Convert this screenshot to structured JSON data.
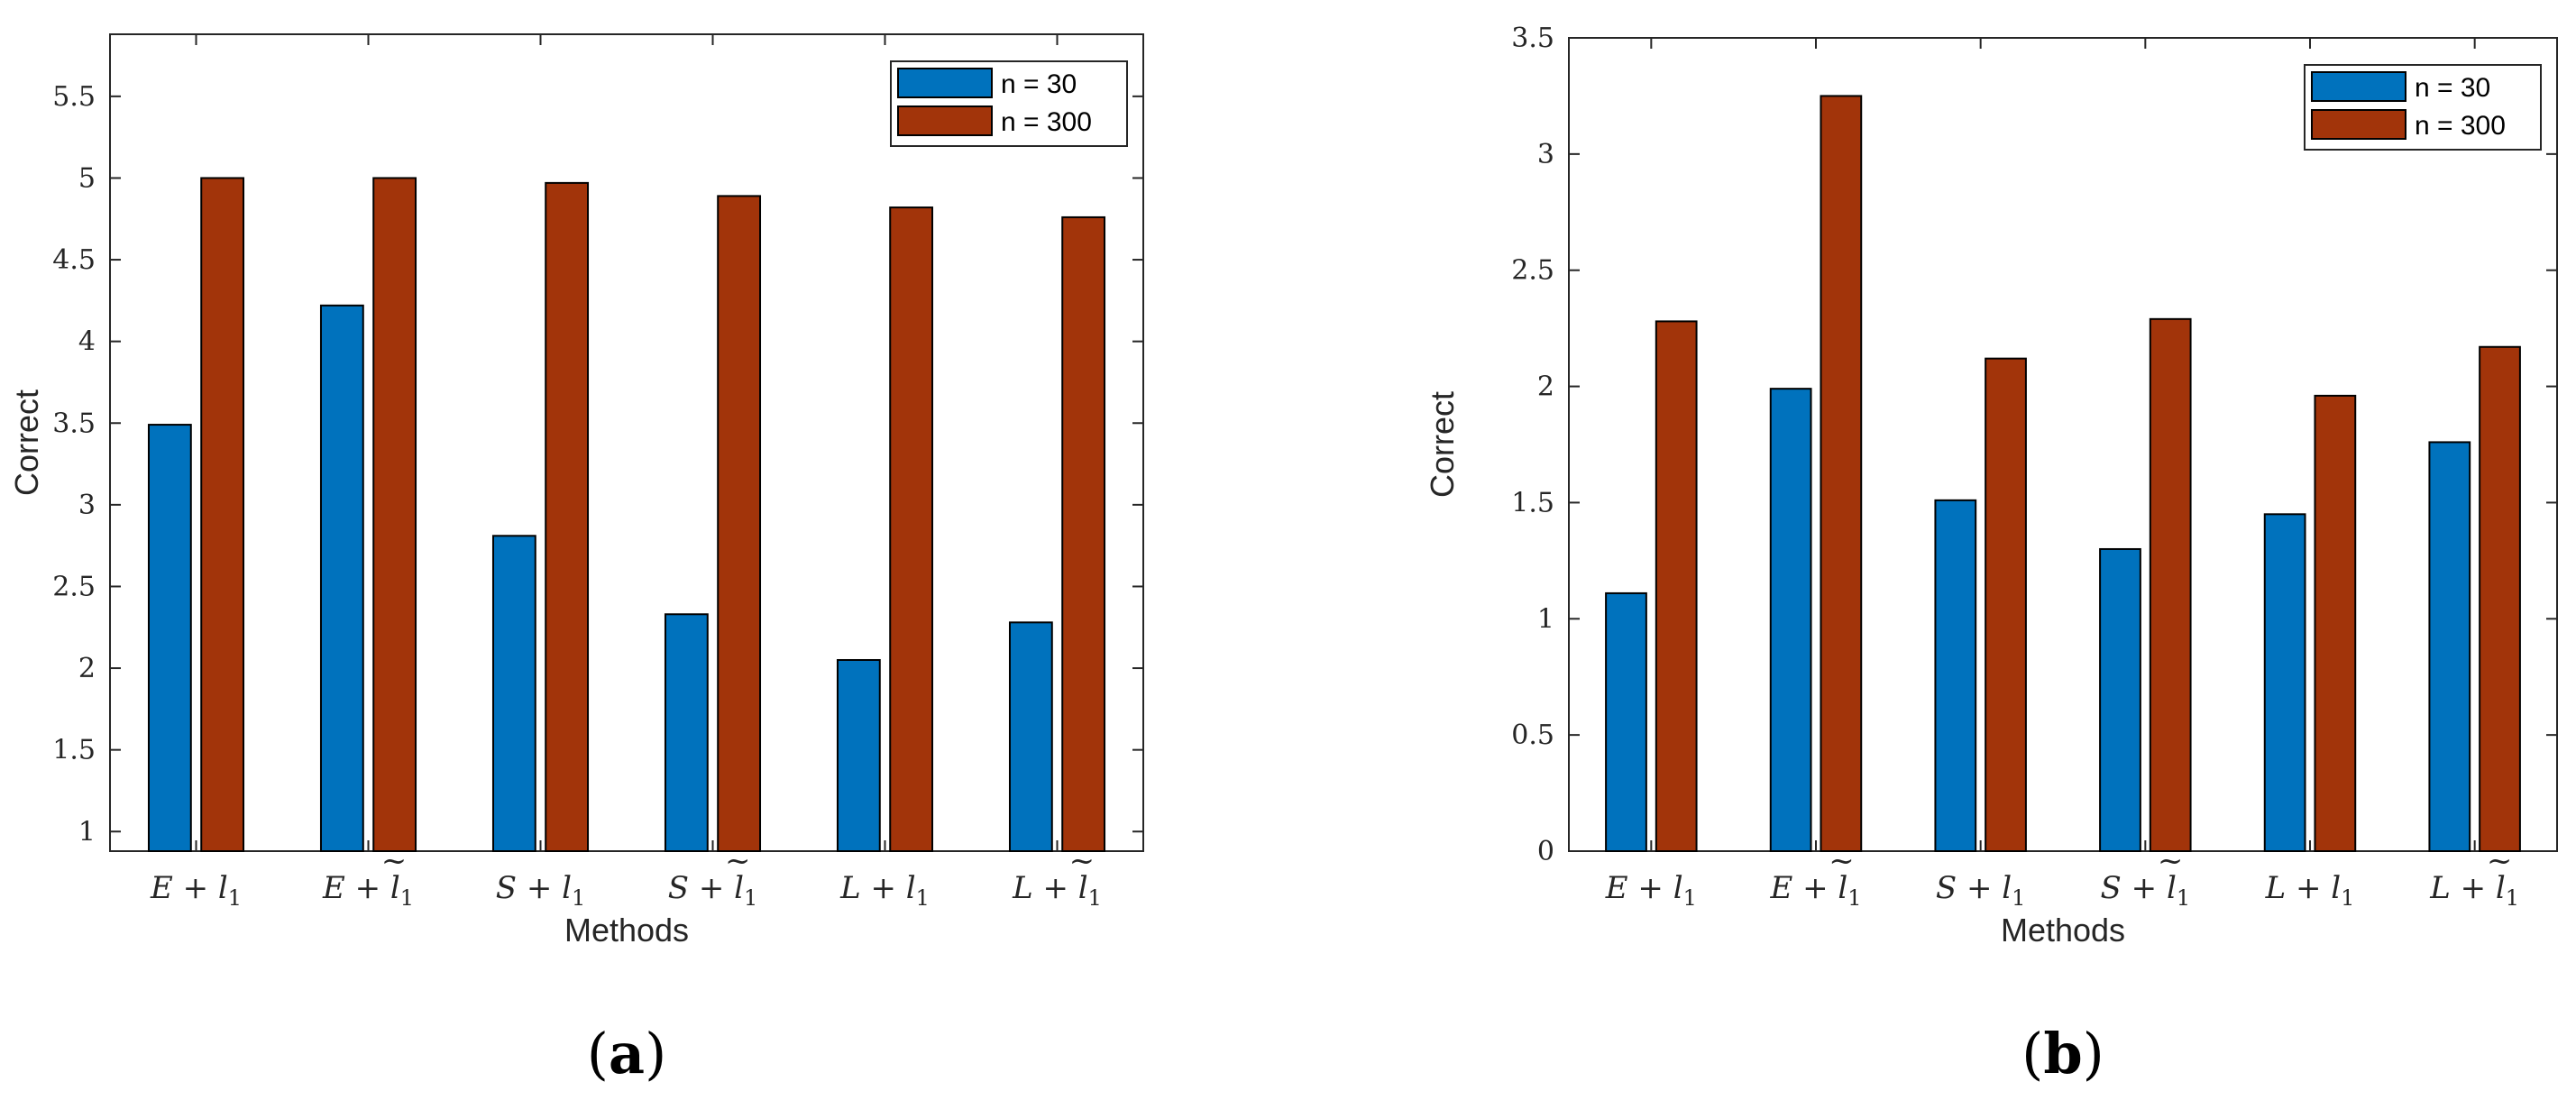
{
  "colors": {
    "series_n30": "#0072BD",
    "series_n300": "#A2340A",
    "axis": "#262626"
  },
  "chart_data": [
    {
      "panel_label": "a",
      "type": "bar",
      "xlabel": "Methods",
      "ylabel": "Correct",
      "ylim": [
        0.88,
        5.88
      ],
      "yticks": [
        1,
        1.5,
        2,
        2.5,
        3,
        3.5,
        4,
        4.5,
        5,
        5.5
      ],
      "ytick_labels": [
        "1",
        "1.5",
        "2",
        "2.5",
        "3",
        "3.5",
        "4",
        "4.5",
        "5",
        "5.5"
      ],
      "categories": [
        "E + l1",
        "E + l̃1",
        "S + l1",
        "S + l̃1",
        "L + l1",
        "L + l̃1"
      ],
      "category_parts": [
        {
          "base": "E + l",
          "sub": "1",
          "tilde": false
        },
        {
          "base": "E + l",
          "sub": "1",
          "tilde": true
        },
        {
          "base": "S + l",
          "sub": "1",
          "tilde": false
        },
        {
          "base": "S + l",
          "sub": "1",
          "tilde": true
        },
        {
          "base": "L + l",
          "sub": "1",
          "tilde": false
        },
        {
          "base": "L + l",
          "sub": "1",
          "tilde": true
        }
      ],
      "legend_position": "top-right",
      "series": [
        {
          "name": "n = 30",
          "values": [
            3.49,
            4.22,
            2.81,
            2.33,
            2.05,
            2.28
          ]
        },
        {
          "name": "n = 300",
          "values": [
            5.0,
            5.0,
            4.97,
            4.89,
            4.82,
            4.76
          ]
        }
      ]
    },
    {
      "panel_label": "b",
      "type": "bar",
      "xlabel": "Methods",
      "ylabel": "Correct",
      "ylim": [
        0,
        3.5
      ],
      "yticks": [
        0,
        0.5,
        1,
        1.5,
        2,
        2.5,
        3,
        3.5
      ],
      "ytick_labels": [
        "0",
        "0.5",
        "1",
        "1.5",
        "2",
        "2.5",
        "3",
        "3.5"
      ],
      "categories": [
        "E + l1",
        "E + l̃1",
        "S + l1",
        "S + l̃1",
        "L + l1",
        "L + l̃1"
      ],
      "category_parts": [
        {
          "base": "E + l",
          "sub": "1",
          "tilde": false
        },
        {
          "base": "E + l",
          "sub": "1",
          "tilde": true
        },
        {
          "base": "S + l",
          "sub": "1",
          "tilde": false
        },
        {
          "base": "S + l",
          "sub": "1",
          "tilde": true
        },
        {
          "base": "L + l",
          "sub": "1",
          "tilde": false
        },
        {
          "base": "L + l",
          "sub": "1",
          "tilde": true
        }
      ],
      "legend_position": "top-right",
      "series": [
        {
          "name": "n = 30",
          "values": [
            1.11,
            1.99,
            1.51,
            1.3,
            1.45,
            1.76
          ]
        },
        {
          "name": "n = 300",
          "values": [
            2.28,
            3.25,
            2.12,
            2.29,
            1.96,
            2.17
          ]
        }
      ]
    }
  ]
}
